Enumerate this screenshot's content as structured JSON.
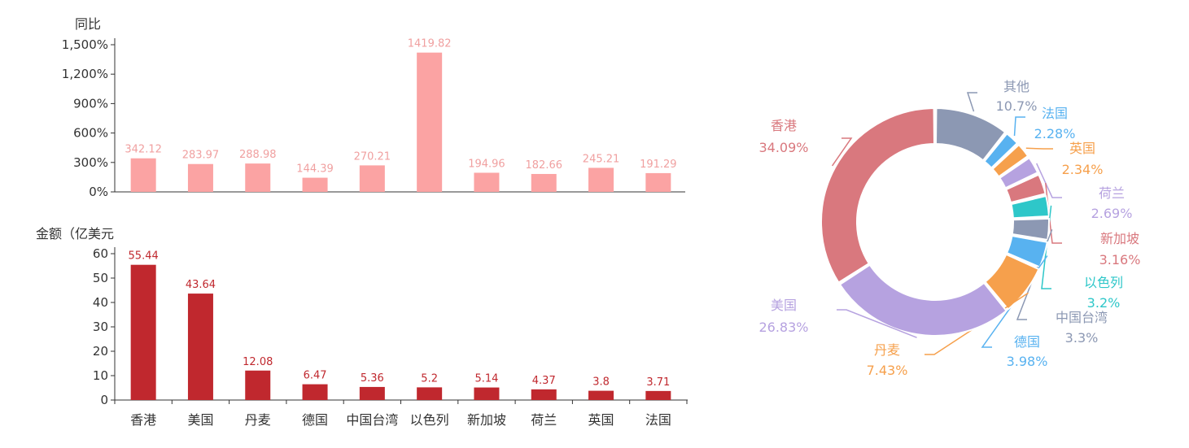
{
  "chart_data": [
    {
      "type": "bar",
      "ylabel": "同比",
      "categories": [
        "香港",
        "美国",
        "丹麦",
        "德国",
        "中国台湾",
        "以色列",
        "新加坡",
        "荷兰",
        "英国",
        "法国"
      ],
      "values": [
        342.12,
        283.97,
        288.98,
        144.39,
        270.21,
        1419.82,
        194.96,
        182.66,
        245.21,
        191.29
      ],
      "value_labels": [
        "342.12",
        "283.97",
        "288.98",
        "144.39",
        "270.21",
        "1419.82",
        "194.96",
        "182.66",
        "245.21",
        "191.29"
      ],
      "yticks": [
        "0%",
        "300%",
        "600%",
        "900%",
        "1,200%",
        "1,500%"
      ],
      "ylim": [
        0,
        1500
      ],
      "color": "#fba3a3"
    },
    {
      "type": "bar",
      "ylabel": "金额（亿美元",
      "categories": [
        "香港",
        "美国",
        "丹麦",
        "德国",
        "中国台湾",
        "以色列",
        "新加坡",
        "荷兰",
        "英国",
        "法国"
      ],
      "values": [
        55.44,
        43.64,
        12.08,
        6.47,
        5.36,
        5.2,
        5.14,
        4.37,
        3.8,
        3.71
      ],
      "value_labels": [
        "55.44",
        "43.64",
        "12.08",
        "6.47",
        "5.36",
        "5.2",
        "5.14",
        "4.37",
        "3.8",
        "3.71"
      ],
      "yticks": [
        "0",
        "10",
        "20",
        "30",
        "40",
        "50",
        "60"
      ],
      "ylim": [
        0,
        60
      ],
      "color": "#c0282e"
    },
    {
      "type": "pie",
      "slices": [
        {
          "name": "其他",
          "value": 10.7,
          "label": "10.7%",
          "color": "#8c98b3"
        },
        {
          "name": "法国",
          "value": 2.28,
          "label": "2.28%",
          "color": "#58b2f0"
        },
        {
          "name": "英国",
          "value": 2.34,
          "label": "2.34%",
          "color": "#f6a04c"
        },
        {
          "name": "荷兰",
          "value": 2.69,
          "label": "2.69%",
          "color": "#b6a2e0"
        },
        {
          "name": "新加坡",
          "value": 3.16,
          "label": "3.16%",
          "color": "#d9787e"
        },
        {
          "name": "以色列",
          "value": 3.2,
          "label": "3.2%",
          "color": "#2ec7c9"
        },
        {
          "name": "中国台湾",
          "value": 3.3,
          "label": "3.3%",
          "color": "#8c98b3"
        },
        {
          "name": "德国",
          "value": 3.98,
          "label": "3.98%",
          "color": "#58b2f0"
        },
        {
          "name": "丹麦",
          "value": 7.43,
          "label": "7.43%",
          "color": "#f6a04c"
        },
        {
          "name": "美国",
          "value": 26.83,
          "label": "26.83%",
          "color": "#b6a2e0"
        },
        {
          "name": "香港",
          "value": 34.09,
          "label": "34.09%",
          "color": "#d9787e"
        }
      ]
    }
  ]
}
